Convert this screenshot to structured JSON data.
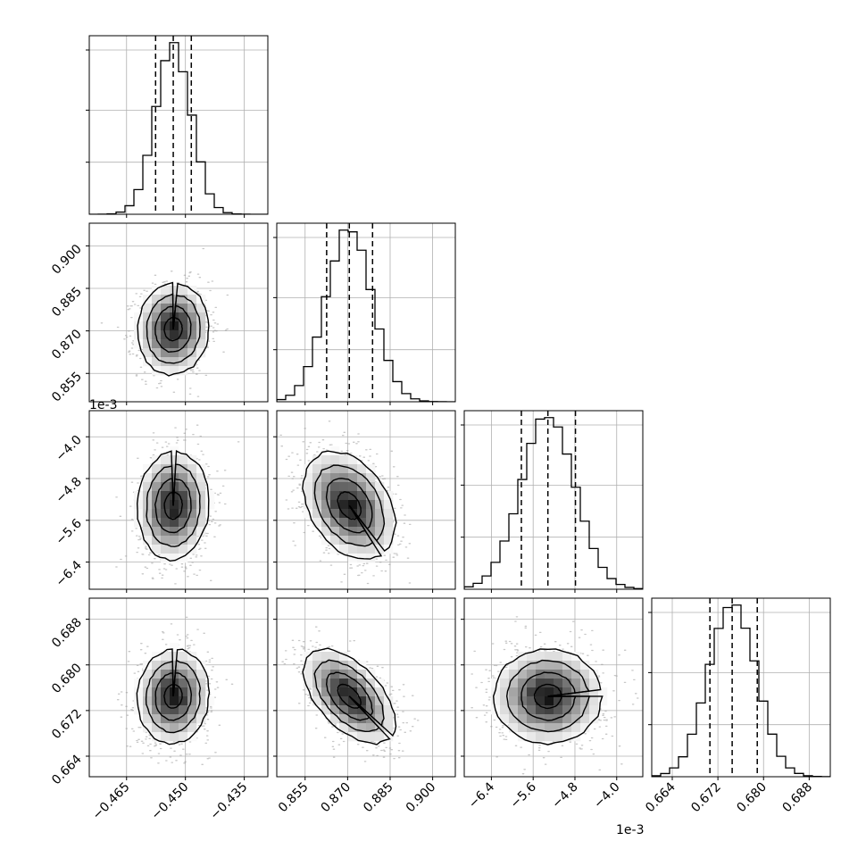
{
  "chart_data": {
    "type": "corner",
    "grid": true,
    "offset_text": "1e-3",
    "parameters": [
      {
        "range": [
          -0.4745,
          -0.429
        ],
        "ticks": [
          -0.465,
          -0.45,
          -0.435
        ],
        "tick_labels": [
          "−0.465",
          "−0.450",
          "−0.435"
        ],
        "quantiles": [
          -0.4576,
          -0.4531,
          -0.4485
        ],
        "scale": 1
      },
      {
        "range": [
          0.845,
          0.908
        ],
        "ticks": [
          0.855,
          0.87,
          0.885,
          0.9
        ],
        "tick_labels": [
          "0.855",
          "0.870",
          "0.885",
          "0.900"
        ],
        "quantiles": [
          0.8626,
          0.8706,
          0.8788
        ],
        "scale": 1
      },
      {
        "range": [
          -6.92,
          -3.5
        ],
        "ticks": [
          -6.4,
          -5.6,
          -4.8,
          -4.0
        ],
        "tick_labels": [
          "−6.4",
          "−5.6",
          "−4.8",
          "−4.0"
        ],
        "quantiles": [
          -5.826,
          -5.318,
          -4.79
        ],
        "scale": 0.001
      },
      {
        "range": [
          0.6604,
          0.6917
        ],
        "ticks": [
          0.664,
          0.672,
          0.68,
          0.688
        ],
        "tick_labels": [
          "0.664",
          "0.672",
          "0.680",
          "0.688"
        ],
        "quantiles": [
          0.6706,
          0.6745,
          0.6789
        ],
        "scale": 1
      }
    ],
    "correlations": [
      {
        "i": 1,
        "j": 0,
        "r": 0.05
      },
      {
        "i": 2,
        "j": 0,
        "r": 0.05
      },
      {
        "i": 2,
        "j": 1,
        "r": -0.35
      },
      {
        "i": 3,
        "j": 0,
        "r": 0.05
      },
      {
        "i": 3,
        "j": 1,
        "r": -0.55
      },
      {
        "i": 3,
        "j": 2,
        "r": 0.0
      }
    ]
  }
}
